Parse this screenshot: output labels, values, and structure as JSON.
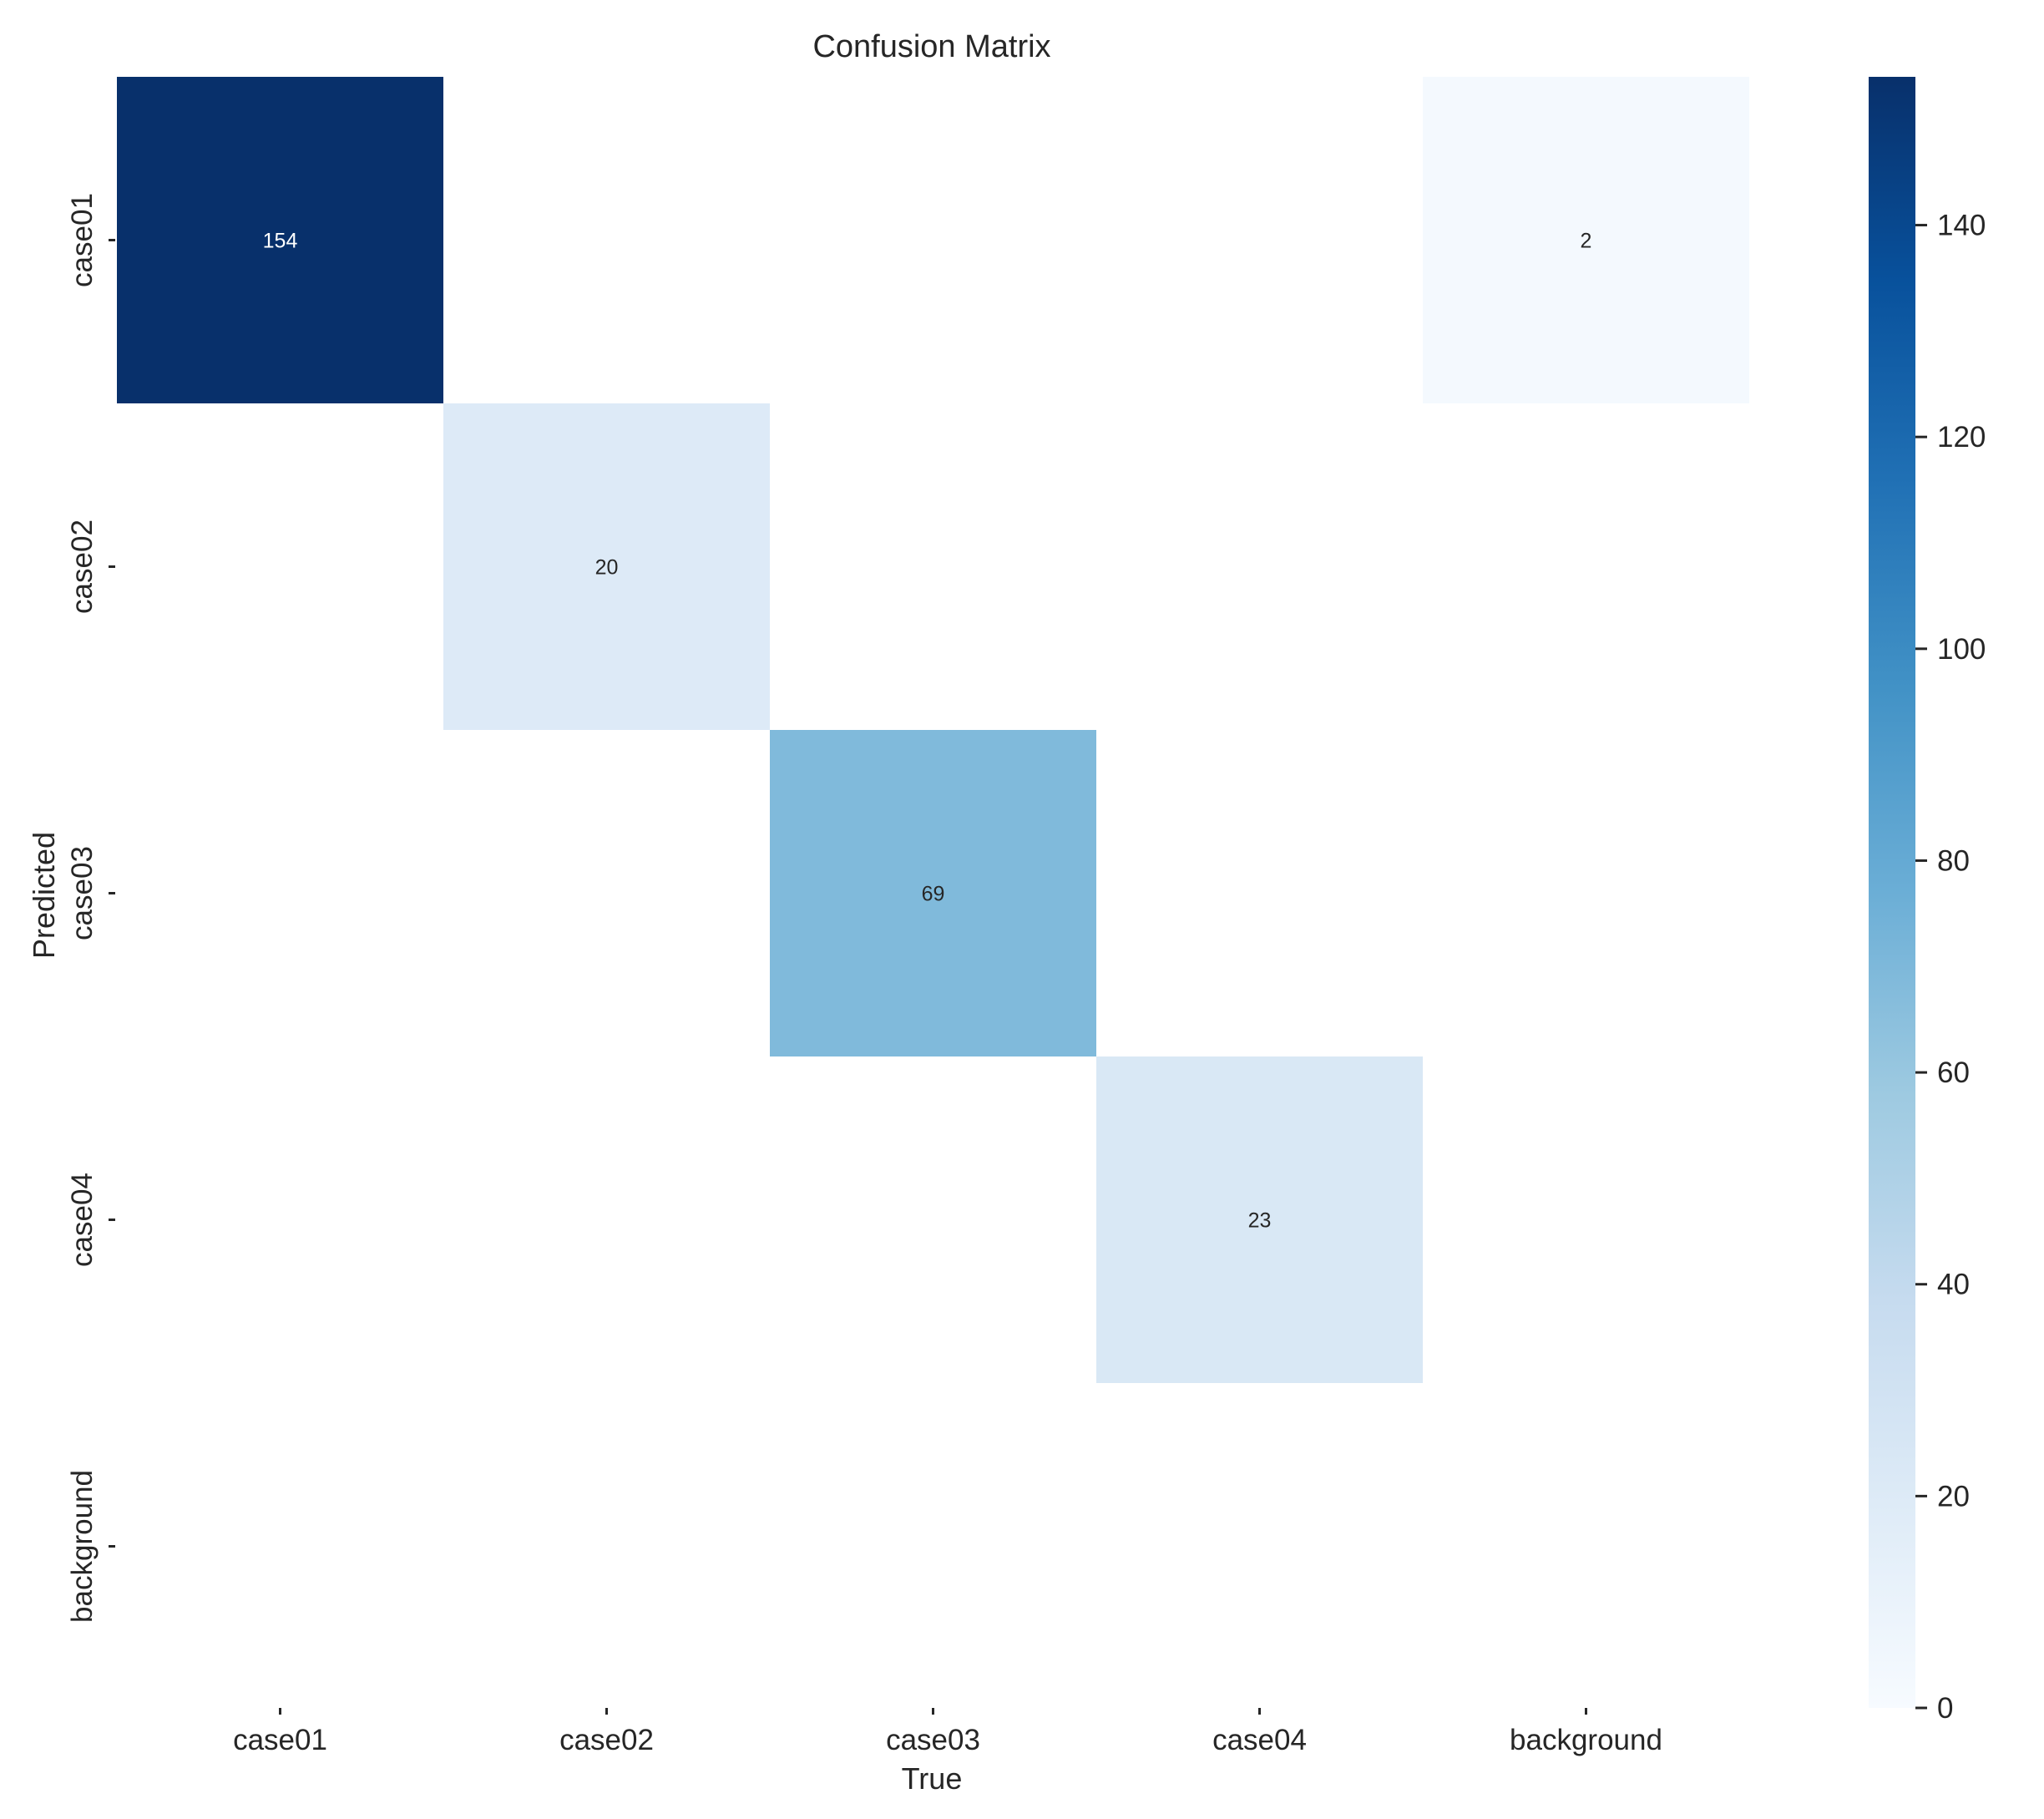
{
  "chart_data": {
    "type": "heatmap",
    "title": "Confusion Matrix",
    "xlabel": "True",
    "ylabel": "Predicted",
    "x_categories": [
      "case01",
      "case02",
      "case03",
      "case04",
      "background"
    ],
    "y_categories": [
      "case01",
      "case02",
      "case03",
      "case04",
      "background"
    ],
    "matrix": [
      [
        154,
        0,
        0,
        0,
        2
      ],
      [
        0,
        20,
        0,
        0,
        0
      ],
      [
        0,
        0,
        69,
        0,
        0
      ],
      [
        0,
        0,
        0,
        23,
        0
      ],
      [
        0,
        0,
        0,
        0,
        0
      ]
    ],
    "cell_labels": [
      [
        "154",
        "",
        "",
        "",
        "2"
      ],
      [
        "",
        "20",
        "",
        "",
        ""
      ],
      [
        "",
        "",
        "69",
        "",
        ""
      ],
      [
        "",
        "",
        "",
        "23",
        ""
      ],
      [
        "",
        "",
        "",
        "",
        ""
      ]
    ],
    "zero_cells_blank": true,
    "colormap": "Blues",
    "colorbar": {
      "min": 0,
      "max": 154,
      "ticks": [
        0,
        20,
        40,
        60,
        80,
        100,
        120,
        140
      ],
      "tick_labels": [
        "0",
        "20",
        "40",
        "60",
        "80",
        "100",
        "120",
        "140"
      ]
    },
    "grid": false
  }
}
